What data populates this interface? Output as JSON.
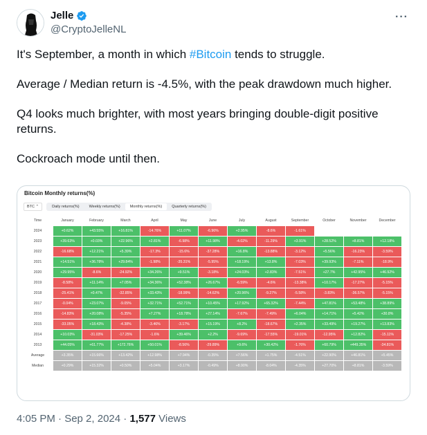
{
  "author": {
    "name": "Jelle",
    "handle": "@CryptoJelleNL"
  },
  "tweet": {
    "p1_before": "It's September, a month in which ",
    "hashtag": "#Bitcoin",
    "p1_after": " tends to struggle.",
    "p2": "Average / Median return is -4.5%, with the peak drawdown much higher.",
    "p3": "Q4 looks much brighter, with most years bringing double-digit positive returns.",
    "p4": "Cockroach mode until then."
  },
  "chart": {
    "title": "Bitcoin Monthly returns(%)",
    "selector": "BTC ⌃",
    "tabs": [
      "Daily returns(%)",
      "Weekly returns(%)",
      "Monthly returns(%)",
      "Quarterly returns(%)"
    ],
    "active_tab": 2
  },
  "colors": {
    "positive": "#4cc069",
    "negative": "#ea5a5a",
    "summary": "#b8b8b8"
  },
  "chart_data": {
    "type": "table",
    "columns": [
      "Time",
      "January",
      "February",
      "March",
      "April",
      "May",
      "June",
      "July",
      "August",
      "September",
      "October",
      "November",
      "December"
    ],
    "rows": [
      [
        "2024",
        "+0.62%",
        "+43.55%",
        "+16.81%",
        "-14.76%",
        "+11.07%",
        "-6.96%",
        "+2.95%",
        "-8.6%",
        "-1.61%",
        "",
        "",
        ""
      ],
      [
        "2023",
        "+39.63%",
        "+0.03%",
        "+22.96%",
        "+2.81%",
        "-6.98%",
        "+11.98%",
        "-4.02%",
        "-11.29%",
        "+3.91%",
        "+28.52%",
        "+8.81%",
        "+12.18%"
      ],
      [
        "2022",
        "-16.68%",
        "+12.21%",
        "+5.39%",
        "-17.3%",
        "-15.6%",
        "-37.28%",
        "+16.8%",
        "-13.88%",
        "-3.12%",
        "+5.56%",
        "-16.23%",
        "-3.59%"
      ],
      [
        "2021",
        "+14.51%",
        "+36.78%",
        "+29.84%",
        "-1.98%",
        "-35.31%",
        "-5.95%",
        "+18.19%",
        "+13.8%",
        "-7.03%",
        "+39.93%",
        "-7.11%",
        "-18.9%"
      ],
      [
        "2020",
        "+29.95%",
        "-8.6%",
        "-24.92%",
        "+34.26%",
        "+9.51%",
        "-3.18%",
        "+24.03%",
        "+2.83%",
        "-7.51%",
        "+27.7%",
        "+42.95%",
        "+46.92%"
      ],
      [
        "2019",
        "-8.58%",
        "+11.14%",
        "+7.05%",
        "+34.36%",
        "+52.38%",
        "+26.67%",
        "-6.59%",
        "-4.6%",
        "-13.38%",
        "+10.17%",
        "-17.27%",
        "-5.15%"
      ],
      [
        "2018",
        "-25.41%",
        "+0.47%",
        "-32.85%",
        "+33.43%",
        "-18.99%",
        "-14.62%",
        "+20.96%",
        "-9.27%",
        "-5.58%",
        "-3.83%",
        "-36.57%",
        "-5.15%"
      ],
      [
        "2017",
        "-0.04%",
        "+23.07%",
        "-9.05%",
        "+32.71%",
        "+52.71%",
        "+10.45%",
        "+17.92%",
        "+65.32%",
        "-7.44%",
        "+47.81%",
        "+53.48%",
        "+38.89%"
      ],
      [
        "2016",
        "-14.83%",
        "+20.08%",
        "-5.35%",
        "+7.27%",
        "+18.78%",
        "+27.14%",
        "-7.67%",
        "-7.49%",
        "+6.04%",
        "+14.71%",
        "+5.42%",
        "+30.8%"
      ],
      [
        "2015",
        "-33.05%",
        "+18.43%",
        "-4.38%",
        "-3.46%",
        "-3.17%",
        "+15.19%",
        "+8.2%",
        "-18.67%",
        "+2.35%",
        "+33.49%",
        "+19.27%",
        "+13.83%"
      ],
      [
        "2014",
        "+10.03%",
        "-31.03%",
        "-17.25%",
        "-1.6%",
        "+39.46%",
        "+2.2%",
        "-9.69%",
        "-17.55%",
        "-19.01%",
        "-12.95%",
        "+12.82%",
        "-15.11%"
      ],
      [
        "2013",
        "+44.05%",
        "+61.77%",
        "+172.76%",
        "+50.01%",
        "-8.56%",
        "-29.89%",
        "+9.6%",
        "+30.42%",
        "-1.76%",
        "+60.79%",
        "+449.35%",
        "-34.81%"
      ]
    ],
    "summary": [
      [
        "Average",
        "+3.35%",
        "+15.66%",
        "+13.42%",
        "+12.98%",
        "+7.94%",
        "-0.35%",
        "+7.56%",
        "+1.75%",
        "-4.51%",
        "+22.90%",
        "+46.81%",
        "+5.45%"
      ],
      [
        "Median",
        "+0.29%",
        "+15.32%",
        "+0.50%",
        "+5.04%",
        "+3.17%",
        "-0.49%",
        "+8.90%",
        "-8.04%",
        "-4.35%",
        "+27.70%",
        "+8.81%",
        "-3.59%"
      ]
    ]
  },
  "footer": {
    "time": "4:05 PM · Sep 2, 2024 · ",
    "views_count": "1,577",
    "views_label": " Views"
  }
}
